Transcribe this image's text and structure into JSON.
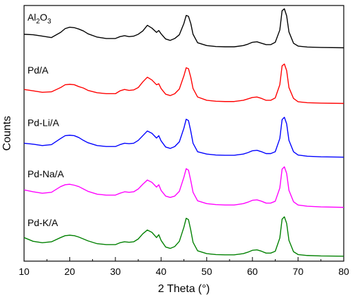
{
  "chart_data": {
    "type": "line",
    "title": "",
    "xlabel": "2 Theta (°)",
    "ylabel": "Counts",
    "xlim": [
      10,
      80
    ],
    "x_ticks": [
      10,
      20,
      30,
      40,
      50,
      60,
      70,
      80
    ],
    "x_tick_labels": [
      "10",
      "20",
      "30",
      "40",
      "50",
      "60",
      "70",
      "80"
    ],
    "y_ticks_shown": false,
    "grid": false,
    "legend": "inline labels at left of each curve",
    "series": [
      {
        "name": "Al2O3",
        "label_main": "Al",
        "label_sub1": "2",
        "label_mid": "O",
        "label_sub2": "3",
        "color": "#000000",
        "x": [
          10,
          12,
          14,
          16,
          18,
          19,
          20,
          21,
          22,
          23,
          24,
          26,
          28,
          30,
          31,
          32,
          33,
          34,
          35,
          36,
          37,
          38,
          39,
          39.5,
          40,
          41,
          42,
          43,
          44,
          45,
          45.5,
          46,
          46.5,
          47,
          48,
          50,
          52,
          54,
          56,
          58,
          59,
          60,
          61,
          62,
          63,
          64,
          65,
          66,
          66.5,
          67,
          67.5,
          68,
          69,
          70,
          72,
          75,
          80
        ],
        "y": [
          2155,
          2150,
          2135,
          2120,
          2175,
          2215,
          2230,
          2225,
          2210,
          2190,
          2160,
          2125,
          2110,
          2110,
          2130,
          2140,
          2130,
          2135,
          2155,
          2190,
          2250,
          2220,
          2175,
          2195,
          2160,
          2105,
          2090,
          2110,
          2150,
          2270,
          2355,
          2345,
          2270,
          2155,
          2065,
          2035,
          2025,
          2022,
          2022,
          2035,
          2050,
          2070,
          2075,
          2060,
          2045,
          2045,
          2070,
          2200,
          2405,
          2425,
          2350,
          2180,
          2060,
          2030,
          2020,
          2015,
          2012
        ]
      },
      {
        "name": "Pd/A",
        "label": "Pd/A",
        "color": "#ff0000",
        "x": [
          10,
          12,
          14,
          16,
          18,
          19,
          20,
          21,
          22,
          23,
          24,
          26,
          28,
          30,
          31,
          32,
          33,
          34,
          35,
          36,
          37,
          38,
          39,
          39.5,
          40,
          41,
          42,
          43,
          44,
          45,
          45.5,
          46,
          46.5,
          47,
          48,
          50,
          52,
          54,
          56,
          58,
          59,
          60,
          61,
          62,
          63,
          64,
          65,
          66,
          66.5,
          67,
          67.5,
          68,
          69,
          70,
          72,
          75,
          80
        ],
        "y": [
          1570,
          1555,
          1540,
          1545,
          1590,
          1620,
          1625,
          1620,
          1600,
          1585,
          1560,
          1535,
          1525,
          1525,
          1555,
          1570,
          1560,
          1565,
          1590,
          1650,
          1700,
          1670,
          1620,
          1630,
          1580,
          1520,
          1505,
          1525,
          1575,
          1715,
          1800,
          1790,
          1700,
          1580,
          1490,
          1455,
          1445,
          1442,
          1442,
          1455,
          1470,
          1485,
          1490,
          1475,
          1455,
          1455,
          1480,
          1620,
          1820,
          1840,
          1770,
          1590,
          1475,
          1440,
          1430,
          1425,
          1422
        ]
      },
      {
        "name": "Pd-Li/A",
        "label": "Pd-Li/A",
        "color": "#0000ff",
        "x": [
          10,
          12,
          14,
          16,
          18,
          19,
          20,
          21,
          22,
          23,
          24,
          26,
          28,
          30,
          31,
          32,
          33,
          34,
          35,
          36,
          37,
          38,
          39,
          39.5,
          40,
          41,
          42,
          43,
          44,
          45,
          45.5,
          46,
          46.5,
          47,
          48,
          50,
          52,
          54,
          56,
          58,
          59,
          60,
          61,
          62,
          63,
          64,
          65,
          66,
          66.5,
          67,
          67.5,
          68,
          69,
          70,
          72,
          75,
          80
        ],
        "y": [
          1000,
          990,
          975,
          985,
          1050,
          1080,
          1085,
          1080,
          1060,
          1030,
          1005,
          975,
          965,
          965,
          985,
          1000,
          995,
          1000,
          1030,
          1080,
          1130,
          1105,
          1055,
          1080,
          1025,
          960,
          945,
          965,
          1015,
          1160,
          1255,
          1240,
          1130,
          1000,
          910,
          885,
          875,
          872,
          872,
          885,
          900,
          920,
          925,
          910,
          890,
          890,
          910,
          1050,
          1250,
          1275,
          1205,
          1030,
          910,
          875,
          862,
          856,
          852
        ]
      },
      {
        "name": "Pd-Na/A",
        "label": "Pd-Na/A",
        "color": "#ff00ff",
        "x": [
          10,
          12,
          14,
          16,
          18,
          19,
          20,
          21,
          22,
          23,
          24,
          26,
          28,
          30,
          31,
          32,
          33,
          34,
          35,
          36,
          37,
          38,
          39,
          39.5,
          40,
          41,
          42,
          43,
          44,
          45,
          45.5,
          46,
          46.5,
          47,
          48,
          50,
          52,
          54,
          56,
          58,
          59,
          60,
          61,
          62,
          63,
          64,
          65,
          66,
          66.5,
          67,
          67.5,
          68,
          69,
          70,
          72,
          75,
          80
        ],
        "y": [
          505,
          485,
          470,
          480,
          540,
          560,
          565,
          555,
          540,
          515,
          490,
          460,
          450,
          450,
          470,
          485,
          480,
          485,
          515,
          565,
          610,
          585,
          535,
          560,
          500,
          440,
          425,
          440,
          490,
          640,
          730,
          715,
          605,
          480,
          390,
          360,
          350,
          345,
          345,
          360,
          375,
          395,
          400,
          385,
          365,
          365,
          385,
          525,
          725,
          750,
          680,
          500,
          380,
          345,
          332,
          325,
          320
        ]
      },
      {
        "name": "Pd-K/A",
        "label": "Pd-K/A",
        "color": "#008000",
        "x": [
          10,
          12,
          14,
          16,
          18,
          19,
          20,
          21,
          22,
          23,
          24,
          26,
          28,
          30,
          31,
          32,
          33,
          34,
          35,
          36,
          37,
          38,
          39,
          39.5,
          40,
          41,
          42,
          43,
          44,
          45,
          45.5,
          46,
          46.5,
          47,
          48,
          50,
          52,
          54,
          56,
          58,
          59,
          60,
          61,
          62,
          63,
          64,
          65,
          66,
          66.5,
          67,
          67.5,
          68,
          69,
          70,
          72,
          75,
          80
        ],
        "y": [
          0,
          -40,
          -55,
          -45,
          0,
          20,
          25,
          20,
          5,
          -15,
          -35,
          -65,
          -75,
          -75,
          -55,
          -45,
          -50,
          -45,
          -15,
          40,
          80,
          55,
          0,
          30,
          -30,
          -100,
          -115,
          -95,
          -40,
          110,
          205,
          190,
          80,
          -50,
          -140,
          -170,
          -180,
          -183,
          -183,
          -170,
          -155,
          -135,
          -130,
          -145,
          -165,
          -165,
          -145,
          -5,
          195,
          220,
          150,
          -30,
          -150,
          -180,
          -190,
          -195,
          -198
        ]
      }
    ]
  }
}
